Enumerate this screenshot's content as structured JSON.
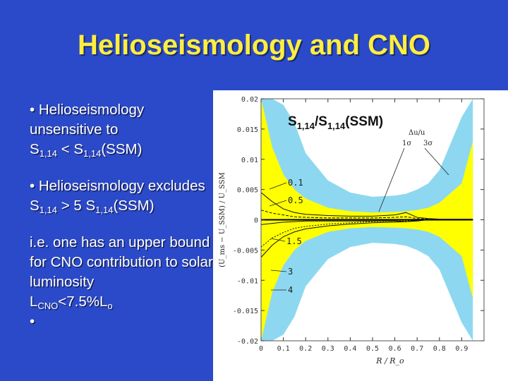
{
  "slide": {
    "title": "Helioseismology and  CNO",
    "bullet1": {
      "a": "• Helioseismology unsensitive to",
      "b": "S",
      "b_sub": "1,14",
      "c": " < S",
      "c_sub": "1,14",
      "d": "(SSM)"
    },
    "bullet2": {
      "a": "• Helioseismology excludes",
      "b": " S",
      "b_sub": "1,14",
      "c": " > 5 S",
      "c_sub": "1,14",
      "d": "(SSM)"
    },
    "para": {
      "a": "i.e. one has an upper bound for CNO contribution to solar luminosity",
      "b": "L",
      "b_sub": "CNO",
      "c": "<7.5%L",
      "c_sub": "o"
    },
    "trailing_bullet": "•"
  },
  "figure": {
    "label": {
      "a": "S",
      "a_sub": "1,14",
      "b": "/S",
      "b_sub": "1,14",
      "c": "(SSM)"
    },
    "ylabel": "(U_ms − U_SSM) / U_SSM",
    "xlabel": "R / R_o",
    "sigma_label": "Δu/u",
    "sigma1": "1σ",
    "sigma3": "3σ",
    "curve_labels": [
      "0.1",
      "0.5",
      "1.5",
      "3",
      "4"
    ],
    "chart_data": {
      "type": "line",
      "xlabel": "R/R_o",
      "ylabel": "(U_ms - U_SSM)/U_SSM",
      "xlim": [
        0,
        1.0
      ],
      "ylim": [
        -0.02,
        0.02
      ],
      "x_ticks": [
        "0",
        "0.1",
        "0.2",
        "0.3",
        "0.4",
        "0.5",
        "0.6",
        "0.7",
        "0.8",
        "0.9"
      ],
      "y_ticks": [
        "0.02",
        "0.015",
        "0.01",
        "0.005",
        "0",
        "-0.005",
        "-0.01",
        "-0.015",
        "-0.02"
      ],
      "x": [
        0.0,
        0.05,
        0.1,
        0.15,
        0.2,
        0.3,
        0.4,
        0.5,
        0.6,
        0.65,
        0.7,
        0.75,
        0.8,
        0.9,
        0.95
      ],
      "bands": [
        {
          "name": "1σ",
          "color": "#ffff00",
          "upper": [
            0.02,
            0.012,
            0.0075,
            0.005,
            0.0035,
            0.002,
            0.0014,
            0.0012,
            0.0013,
            0.0014,
            0.0016,
            0.002,
            0.0028,
            0.006,
            0.013
          ],
          "lower": [
            -0.02,
            -0.012,
            -0.0075,
            -0.005,
            -0.0035,
            -0.002,
            -0.0014,
            -0.0012,
            -0.0013,
            -0.0014,
            -0.0016,
            -0.002,
            -0.0028,
            -0.006,
            -0.013
          ]
        },
        {
          "name": "3σ",
          "color": "#8dd8f0",
          "upper": [
            0.02,
            0.02,
            0.019,
            0.016,
            0.011,
            0.0065,
            0.0045,
            0.0038,
            0.004,
            0.0043,
            0.005,
            0.006,
            0.0082,
            0.017,
            0.02
          ],
          "lower": [
            -0.02,
            -0.02,
            -0.019,
            -0.016,
            -0.011,
            -0.0065,
            -0.0045,
            -0.0038,
            -0.004,
            -0.0043,
            -0.005,
            -0.006,
            -0.0082,
            -0.017,
            -0.02
          ]
        }
      ],
      "series": [
        {
          "name": "0.1",
          "values": [
            0.0045,
            0.003,
            0.0018,
            0.0012,
            0.0009,
            0.0007,
            0.0006,
            0.0006,
            0.0008,
            0.0012,
            0.0004,
            0.0002,
            0.0001,
            0.0001,
            0.0001
          ]
        },
        {
          "name": "0.5",
          "values": [
            0.0016,
            0.0011,
            0.0008,
            0.0005,
            0.0004,
            0.0003,
            0.0003,
            0.0003,
            0.0004,
            0.0005,
            0.0002,
            0.0001,
            0.0,
            0.0,
            0.0
          ]
        },
        {
          "name": "1.5",
          "values": [
            -0.0008,
            -0.0006,
            -0.0004,
            -0.0003,
            -0.0002,
            -0.0002,
            -0.0002,
            -0.0002,
            -0.0002,
            -0.0003,
            -0.0001,
            0.0,
            0.0,
            0.0,
            0.0
          ]
        },
        {
          "name": "3",
          "values": [
            -0.0045,
            -0.003,
            -0.0021,
            -0.0014,
            -0.0011,
            -0.0007,
            -0.0005,
            -0.0003,
            -0.0002,
            -0.0002,
            -0.0001,
            0.0,
            0.0,
            0.0,
            0.0
          ]
        },
        {
          "name": "4",
          "values": [
            -0.0062,
            -0.0042,
            -0.0028,
            -0.002,
            -0.0015,
            -0.001,
            -0.0007,
            -0.0005,
            -0.0004,
            -0.0003,
            -0.0002,
            0.0,
            0.0,
            0.0,
            0.0
          ]
        }
      ],
      "grid": false
    }
  }
}
